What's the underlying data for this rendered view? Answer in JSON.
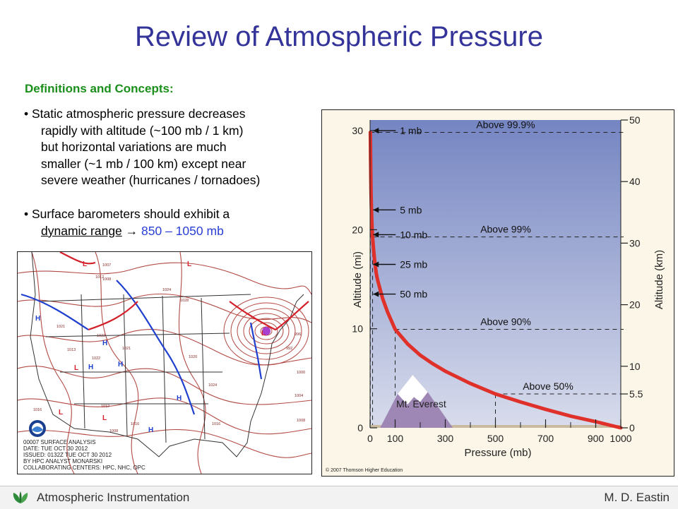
{
  "title": "Review of Atmospheric Pressure",
  "section": "Definitions and Concepts:",
  "bullets": [
    {
      "first": "Static atmospheric pressure decreases",
      "lines": [
        "rapidly with altitude (~100 mb / 1 km)",
        "but horizontal variations are much",
        "smaller (~1 mb / 100 km) except near",
        "severe weather (hurricanes / tornadoes)"
      ]
    },
    {
      "first": "Surface barometers should exhibit a",
      "underlined": "dynamic range",
      "arrow": "→",
      "range": "850 – 1050 mb"
    }
  ],
  "map": {
    "caption_lines": [
      "00007 SURFACE ANALYSIS",
      "DATE: TUE OCT 30 2012",
      "ISSUED: 0132Z TUE OCT 30 2012",
      "BY HPC ANALYST MONARSKI",
      "COLLABORATING CENTERS: HPC, NHC, OPC"
    ],
    "labels": [
      "L",
      "H",
      "H",
      "H",
      "H",
      "L",
      "L",
      "H",
      "L",
      "H",
      "L",
      "L"
    ],
    "pressures": [
      "1007",
      "1012",
      "1008",
      "1024",
      "1028",
      "1021",
      "1022",
      "1013",
      "1022",
      "1021",
      "1016",
      "1012",
      "1016",
      "1016",
      "1008",
      "1020",
      "1024",
      "996",
      "992",
      "1000",
      "1008",
      "1004"
    ]
  },
  "chart_data": {
    "type": "line",
    "xlabel": "Pressure (mb)",
    "ylabel_left": "Altitude (mi)",
    "ylabel_right": "Altitude (km)",
    "x_ticks": [
      0,
      100,
      300,
      500,
      700,
      900,
      1000
    ],
    "y_ticks_left": [
      0,
      10,
      20,
      30
    ],
    "y_ticks_right": [
      0,
      5.5,
      10,
      20,
      30,
      40,
      50
    ],
    "xlim": [
      0,
      1000
    ],
    "ylim_km": [
      0,
      50
    ],
    "series": [
      {
        "x": [
          1,
          2,
          3,
          4,
          5,
          7,
          10,
          15,
          20,
          25,
          30,
          40,
          50,
          70,
          100,
          150,
          200,
          250,
          300,
          400,
          500,
          600,
          700,
          800,
          900,
          1000
        ],
        "y_km": [
          48,
          44,
          40.3,
          38,
          36,
          33.5,
          31,
          28.5,
          26.5,
          25,
          24,
          22.5,
          21,
          18.8,
          16,
          13.6,
          11.8,
          10.4,
          9.2,
          7.2,
          5.5,
          4.2,
          3,
          1.9,
          1,
          0
        ]
      }
    ],
    "arrows": [
      {
        "label": "1 mb",
        "y_mi": 30
      },
      {
        "label": "5 mb",
        "y_mi": 22
      },
      {
        "label": "10 mb",
        "y_mi": 19.5
      },
      {
        "label": "25 mb",
        "y_mi": 16.5
      },
      {
        "label": "50 mb",
        "y_mi": 13.5
      }
    ],
    "bands": [
      {
        "label": "Above 99.9%",
        "y_km": 48
      },
      {
        "label": "Above 99%",
        "y_km": 31
      },
      {
        "label": "Above 90%",
        "y_km": 16
      },
      {
        "label": "Above 50%",
        "y_km": 5.5
      }
    ],
    "mountain_label": "Mt. Everest",
    "copyright": "© 2007 Thomson Higher Education",
    "colors": {
      "curve": "#e0302a",
      "sky_top": "#7585c2",
      "sky_bottom": "#d8dcec",
      "ground": "#c8bba0",
      "mountain": "#9e86b5"
    }
  },
  "footer": {
    "left": "Atmospheric Instrumentation",
    "right": "M. D. Eastin"
  }
}
